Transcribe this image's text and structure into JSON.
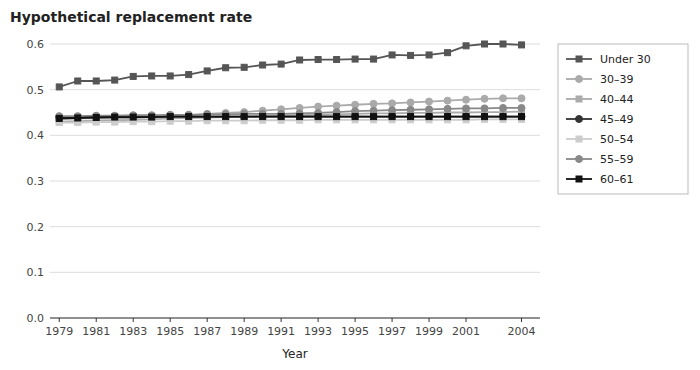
{
  "chart_data": {
    "type": "line",
    "title": "Hypothetical replacement rate",
    "xlabel": "Year",
    "x": [
      1979,
      1980,
      1981,
      1982,
      1983,
      1984,
      1985,
      1986,
      1987,
      1988,
      1989,
      1990,
      1991,
      1992,
      1993,
      1994,
      1995,
      1996,
      1997,
      1998,
      1999,
      2000,
      2001,
      2002,
      2003,
      2004
    ],
    "series": [
      {
        "name": "Under 30",
        "color": "#555555",
        "marker": "square",
        "values": [
          0.506,
          0.519,
          0.519,
          0.521,
          0.529,
          0.53,
          0.53,
          0.533,
          0.541,
          0.548,
          0.549,
          0.554,
          0.556,
          0.565,
          0.566,
          0.566,
          0.567,
          0.567,
          0.576,
          0.575,
          0.576,
          0.581,
          0.596,
          0.6,
          0.6,
          0.598
        ]
      },
      {
        "name": "30–39",
        "color": "#aaaaaa",
        "marker": "circle",
        "values": [
          0.435,
          0.437,
          0.437,
          0.437,
          0.438,
          0.44,
          0.442,
          0.444,
          0.447,
          0.449,
          0.451,
          0.454,
          0.457,
          0.46,
          0.463,
          0.465,
          0.467,
          0.469,
          0.47,
          0.472,
          0.474,
          0.476,
          0.478,
          0.48,
          0.481,
          0.481
        ]
      },
      {
        "name": "40–44",
        "color": "#aaaaaa",
        "marker": "square",
        "values": [
          0.43,
          0.431,
          0.432,
          0.433,
          0.434,
          0.435,
          0.437,
          0.438,
          0.439,
          0.44,
          0.441,
          0.442,
          0.443,
          0.444,
          0.445,
          0.446,
          0.447,
          0.448,
          0.448,
          0.449,
          0.449,
          0.45,
          0.45,
          0.451,
          0.451,
          0.452
        ]
      },
      {
        "name": "45–49",
        "color": "#333333",
        "marker": "circle",
        "values": [
          0.44,
          0.44,
          0.441,
          0.441,
          0.441,
          0.441,
          0.441,
          0.441,
          0.441,
          0.441,
          0.441,
          0.441,
          0.441,
          0.441,
          0.441,
          0.441,
          0.441,
          0.441,
          0.441,
          0.441,
          0.441,
          0.441,
          0.441,
          0.441,
          0.441,
          0.441
        ]
      },
      {
        "name": "50–54",
        "color": "#cccccc",
        "marker": "square",
        "values": [
          0.428,
          0.428,
          0.429,
          0.429,
          0.43,
          0.43,
          0.431,
          0.431,
          0.432,
          0.432,
          0.432,
          0.433,
          0.433,
          0.433,
          0.434,
          0.434,
          0.434,
          0.434,
          0.434,
          0.434,
          0.434,
          0.434,
          0.434,
          0.435,
          0.435,
          0.435
        ]
      },
      {
        "name": "55–59",
        "color": "#888888",
        "marker": "circle",
        "values": [
          0.442,
          0.442,
          0.443,
          0.443,
          0.444,
          0.444,
          0.445,
          0.445,
          0.446,
          0.446,
          0.447,
          0.447,
          0.447,
          0.448,
          0.449,
          0.451,
          0.453,
          0.454,
          0.455,
          0.456,
          0.457,
          0.458,
          0.459,
          0.459,
          0.46,
          0.46
        ]
      },
      {
        "name": "60–61",
        "color": "#111111",
        "marker": "square",
        "values": [
          0.437,
          0.438,
          0.439,
          0.44,
          0.44,
          0.44,
          0.441,
          0.441,
          0.441,
          0.441,
          0.441,
          0.441,
          0.441,
          0.441,
          0.441,
          0.441,
          0.441,
          0.441,
          0.441,
          0.441,
          0.441,
          0.441,
          0.441,
          0.441,
          0.441,
          0.441
        ]
      }
    ],
    "xlim": [
      1978.5,
      2005.0
    ],
    "xticks": [
      1979,
      1981,
      1983,
      1985,
      1987,
      1989,
      1991,
      1993,
      1995,
      1997,
      1999,
      2001,
      2004
    ],
    "ylim": [
      0.0,
      0.6
    ],
    "yticks": [
      {
        "value": 0,
        "label": "0.0"
      },
      0.1,
      0.2,
      0.3,
      0.4,
      0.5,
      0.6
    ],
    "grid": true,
    "legend": "right"
  }
}
